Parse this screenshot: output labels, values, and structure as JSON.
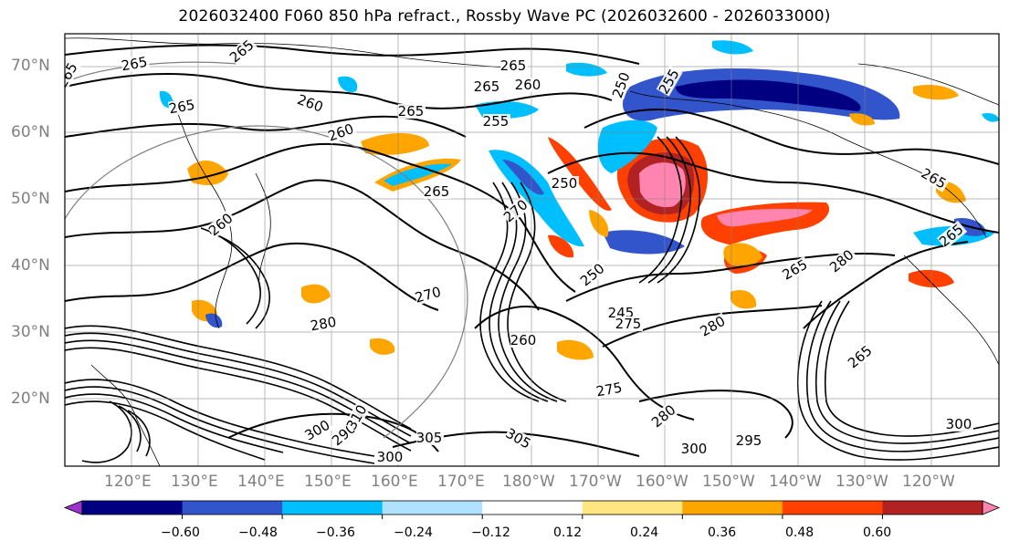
{
  "title": "2026032400 F060 850 hPa refract., Rossby Wave PC (2026032600 - 2026033000)",
  "lat_labels": [
    "70°N",
    "60°N",
    "50°N",
    "40°N",
    "30°N",
    "20°N"
  ],
  "lon_labels": [
    "120°E",
    "130°E",
    "140°E",
    "150°E",
    "160°E",
    "170°E",
    "180°W",
    "170°W",
    "160°W",
    "150°W",
    "140°W",
    "130°W",
    "120°W"
  ],
  "colorbar": {
    "colors": [
      "#9933cc",
      "#000080",
      "#3355cc",
      "#00bfff",
      "#b0e2ff",
      "#ffffff",
      "#ffe680",
      "#ffa500",
      "#ff4000",
      "#b22222",
      "#ff85b0"
    ],
    "ticks": [
      "−0.60",
      "−0.48",
      "−0.36",
      "−0.24",
      "−0.12",
      "0.12",
      "0.24",
      "0.36",
      "0.48",
      "0.60"
    ]
  },
  "contour_labels": [
    "265",
    "265",
    "265",
    "265",
    "260",
    "260",
    "265",
    "255",
    "250",
    "255",
    "265",
    "260",
    "265",
    "250",
    "260",
    "265",
    "265",
    "265",
    "270",
    "280",
    "250",
    "245",
    "275",
    "280",
    "260",
    "275",
    "280",
    "290",
    "300",
    "310",
    "305",
    "300",
    "305",
    "295",
    "300",
    "300",
    "270",
    "265",
    "280",
    "265"
  ]
}
